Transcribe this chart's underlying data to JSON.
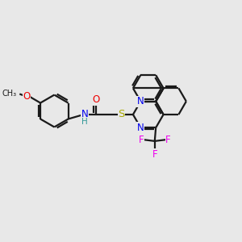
{
  "bg_color": "#e8e8e8",
  "bond_color": "#1a1a1a",
  "N_color": "#0000ee",
  "O_color": "#ee0000",
  "S_color": "#aaaa00",
  "F_color": "#ee00ee",
  "H_color": "#339999",
  "line_width": 1.6,
  "font_size": 8.5,
  "figsize": [
    3.0,
    3.0
  ],
  "dpi": 100,
  "xlim": [
    0,
    10
  ],
  "ylim": [
    0,
    10
  ]
}
